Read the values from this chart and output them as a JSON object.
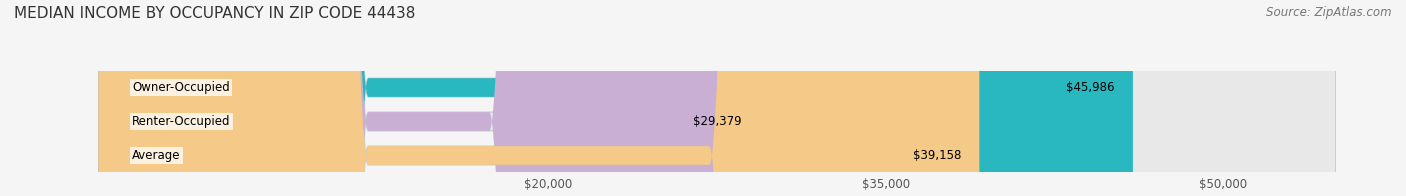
{
  "title": "MEDIAN INCOME BY OCCUPANCY IN ZIP CODE 44438",
  "source": "Source: ZipAtlas.com",
  "categories": [
    "Owner-Occupied",
    "Renter-Occupied",
    "Average"
  ],
  "values": [
    45986,
    29379,
    39158
  ],
  "bar_colors": [
    "#2ab8c0",
    "#c9afd4",
    "#f5c987"
  ],
  "value_labels": [
    "$45,986",
    "$29,379",
    "$39,158"
  ],
  "xmin": 0,
  "xmax": 55000,
  "xticks": [
    20000,
    35000,
    50000
  ],
  "xtick_labels": [
    "$20,000",
    "$35,000",
    "$50,000"
  ],
  "title_fontsize": 11,
  "label_fontsize": 8.5,
  "tick_fontsize": 8.5,
  "source_fontsize": 8.5,
  "background_color": "#f5f5f5",
  "bar_background_color": "#e8e8e8"
}
